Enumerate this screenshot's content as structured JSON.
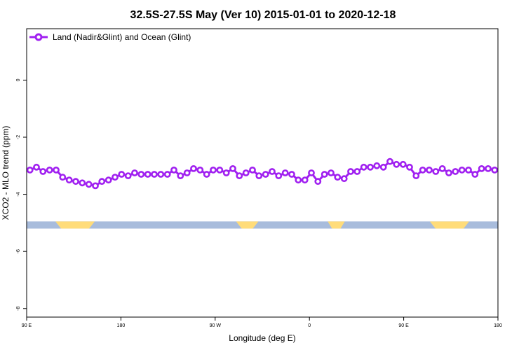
{
  "chart_data": {
    "type": "line",
    "title": "32.5S-27.5S May (Ver 10)   2015-01-01 to 2020-12-18",
    "xlabel": "Longitude (deg E)",
    "ylabel": "XCO2 - MLO trend (ppm)",
    "xlim": [
      90,
      450
    ],
    "ylim": [
      -8.3,
      1.8
    ],
    "x_ticks": [
      {
        "value": 90,
        "label": "90 E"
      },
      {
        "value": 162,
        "label": "180"
      },
      {
        "value": 234,
        "label": "90 W"
      },
      {
        "value": 306,
        "label": "0"
      },
      {
        "value": 378,
        "label": "90 E"
      },
      {
        "value": 450,
        "label": "180"
      }
    ],
    "y_ticks": [
      {
        "value": 0,
        "label": "0"
      },
      {
        "value": -2,
        "label": "-2"
      },
      {
        "value": -4,
        "label": "-4"
      },
      {
        "value": -6,
        "label": "-6"
      },
      {
        "value": -8,
        "label": "-8"
      }
    ],
    "grid": false,
    "legend": {
      "position": "top-left",
      "label": "Land (Nadir&Glint) and Ocean (Glint)"
    },
    "series": [
      {
        "name": "Land (Nadir&Glint) and Ocean (Glint)",
        "color": "#a020f0",
        "marker": "open-circle",
        "x": [
          92.5,
          97.5,
          102.5,
          107.5,
          112.5,
          117.5,
          122.5,
          127.5,
          132.5,
          137.5,
          142.5,
          147.5,
          152.5,
          157.5,
          162.5,
          167.5,
          172.5,
          177.5,
          182.5,
          187.5,
          192.5,
          197.5,
          202.5,
          207.5,
          212.5,
          217.5,
          222.5,
          227.5,
          232.5,
          237.5,
          242.5,
          247.5,
          252.5,
          257.5,
          262.5,
          267.5,
          272.5,
          277.5,
          282.5,
          287.5,
          292.5,
          297.5,
          302.5,
          307.5,
          312.5,
          317.5,
          322.5,
          327.5,
          332.5,
          337.5,
          342.5,
          347.5,
          352.5,
          357.5,
          362.5,
          367.5,
          372.5,
          377.5,
          382.5,
          387.5,
          392.5,
          397.5,
          402.5,
          407.5,
          412.5,
          417.5,
          422.5,
          427.5,
          432.5,
          437.5,
          442.5,
          447.5
        ],
        "values": [
          -3.15,
          -3.05,
          -3.2,
          -3.15,
          -3.15,
          -3.4,
          -3.5,
          -3.55,
          -3.6,
          -3.65,
          -3.7,
          -3.55,
          -3.5,
          -3.4,
          -3.3,
          -3.35,
          -3.25,
          -3.3,
          -3.3,
          -3.3,
          -3.3,
          -3.3,
          -3.15,
          -3.35,
          -3.25,
          -3.1,
          -3.15,
          -3.3,
          -3.15,
          -3.15,
          -3.25,
          -3.1,
          -3.35,
          -3.25,
          -3.15,
          -3.35,
          -3.3,
          -3.2,
          -3.35,
          -3.25,
          -3.3,
          -3.5,
          -3.5,
          -3.25,
          -3.55,
          -3.3,
          -3.25,
          -3.4,
          -3.45,
          -3.2,
          -3.2,
          -3.05,
          -3.05,
          -3.0,
          -3.05,
          -2.85,
          -2.95,
          -2.95,
          -3.05,
          -3.35,
          -3.15,
          -3.15,
          -3.2,
          -3.1,
          -3.25,
          -3.2,
          -3.15,
          -3.15,
          -3.3,
          -3.1,
          -3.1,
          -3.15
        ]
      }
    ],
    "land_ocean_band": {
      "y_range": [
        -4.95,
        -5.2
      ],
      "ocean_color": "#a8bcdc",
      "land_color": "#ffdc7a",
      "land_segments": [
        [
          112,
          142
        ],
        [
          250,
          267
        ],
        [
          320,
          333
        ],
        [
          398,
          428
        ]
      ]
    }
  }
}
